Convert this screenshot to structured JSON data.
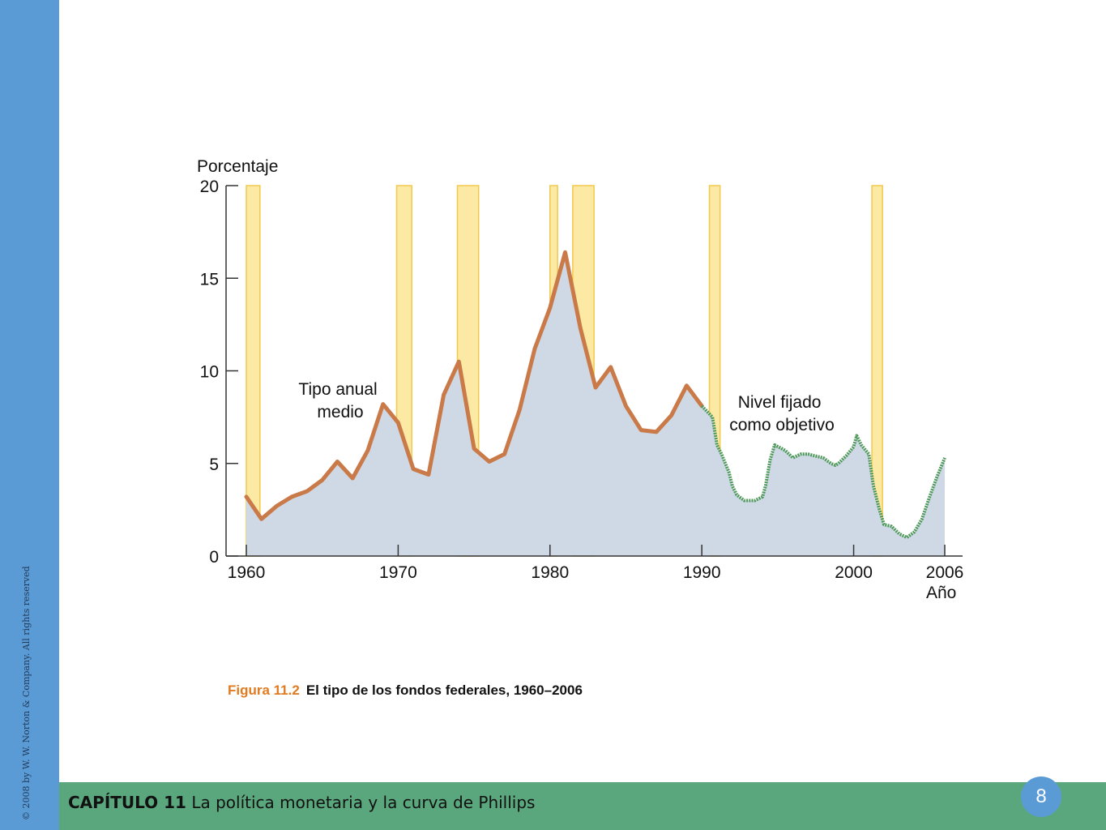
{
  "footer": {
    "chapter_label": "CAPÍTULO 11",
    "chapter_title": "La política monetaria y la curva de Phillips",
    "page_number": "8",
    "copyright": "© 2008 by W. W. Norton & Company. All rights reserved"
  },
  "caption": {
    "figure_number": "Figura 11.2",
    "figure_title": "El tipo de los fondos federales, 1960–2006"
  },
  "colors": {
    "left_bar": "#5b9bd5",
    "footer_bar": "#5aa77e",
    "recession": "#fbe9a4",
    "recession_edge": "#f2c94c",
    "area": "#cfd9e6",
    "average_line": "#c97a48",
    "target_line": "#4f9a5a"
  },
  "chart_data": {
    "type": "line",
    "ylabel": "Porcentaje",
    "xlabel": "Año",
    "xlim": [
      1960,
      2006
    ],
    "ylim": [
      0,
      20
    ],
    "x_ticks": [
      1960,
      1970,
      1980,
      1990,
      2000,
      2006
    ],
    "y_ticks": [
      0,
      5,
      10,
      15,
      20
    ],
    "recessions": [
      [
        1960.0,
        1960.9
      ],
      [
        1969.9,
        1970.9
      ],
      [
        1973.9,
        1975.3
      ],
      [
        1980.0,
        1980.5
      ],
      [
        1981.5,
        1982.9
      ],
      [
        1990.5,
        1991.2
      ],
      [
        2001.2,
        2001.9
      ]
    ],
    "annotations": [
      {
        "text": "Tipo anual medio",
        "series": "average"
      },
      {
        "text": "Nivel fijado como objetivo",
        "series": "target"
      }
    ],
    "series": [
      {
        "name": "Tipo anual medio",
        "x": [
          1960,
          1961,
          1962,
          1963,
          1964,
          1965,
          1966,
          1967,
          1968,
          1969,
          1970,
          1971,
          1972,
          1973,
          1974,
          1975,
          1976,
          1977,
          1978,
          1979,
          1980,
          1981,
          1982,
          1983,
          1984,
          1985,
          1986,
          1987,
          1988,
          1989,
          1990
        ],
        "values": [
          3.2,
          2.0,
          2.7,
          3.2,
          3.5,
          4.1,
          5.1,
          4.2,
          5.7,
          8.2,
          7.2,
          4.7,
          4.4,
          8.7,
          10.5,
          5.8,
          5.1,
          5.5,
          7.9,
          11.2,
          13.4,
          16.4,
          12.3,
          9.1,
          10.2,
          8.1,
          6.8,
          6.7,
          7.6,
          9.2,
          8.1
        ]
      },
      {
        "name": "Nivel fijado como objetivo",
        "x": [
          1990.0,
          1990.7,
          1991.0,
          1991.3,
          1991.8,
          1992.0,
          1992.3,
          1992.8,
          1993.5,
          1994.0,
          1994.2,
          1994.5,
          1994.8,
          1995.5,
          1996.0,
          1996.5,
          1997.0,
          1998.0,
          1998.5,
          1998.8,
          1999.0,
          1999.5,
          2000.0,
          2000.2,
          2000.5,
          2001.0,
          2001.3,
          2001.7,
          2002.0,
          2002.5,
          2003.0,
          2003.5,
          2004.0,
          2004.5,
          2005.0,
          2005.5,
          2006.0
        ],
        "values": [
          8.1,
          7.5,
          6.0,
          5.5,
          4.5,
          3.8,
          3.3,
          3.0,
          3.0,
          3.2,
          3.8,
          5.2,
          6.0,
          5.7,
          5.3,
          5.5,
          5.5,
          5.3,
          5.0,
          4.9,
          5.0,
          5.4,
          5.9,
          6.5,
          6.0,
          5.5,
          3.8,
          2.5,
          1.7,
          1.6,
          1.2,
          1.0,
          1.3,
          2.0,
          3.2,
          4.3,
          5.3
        ]
      }
    ]
  }
}
